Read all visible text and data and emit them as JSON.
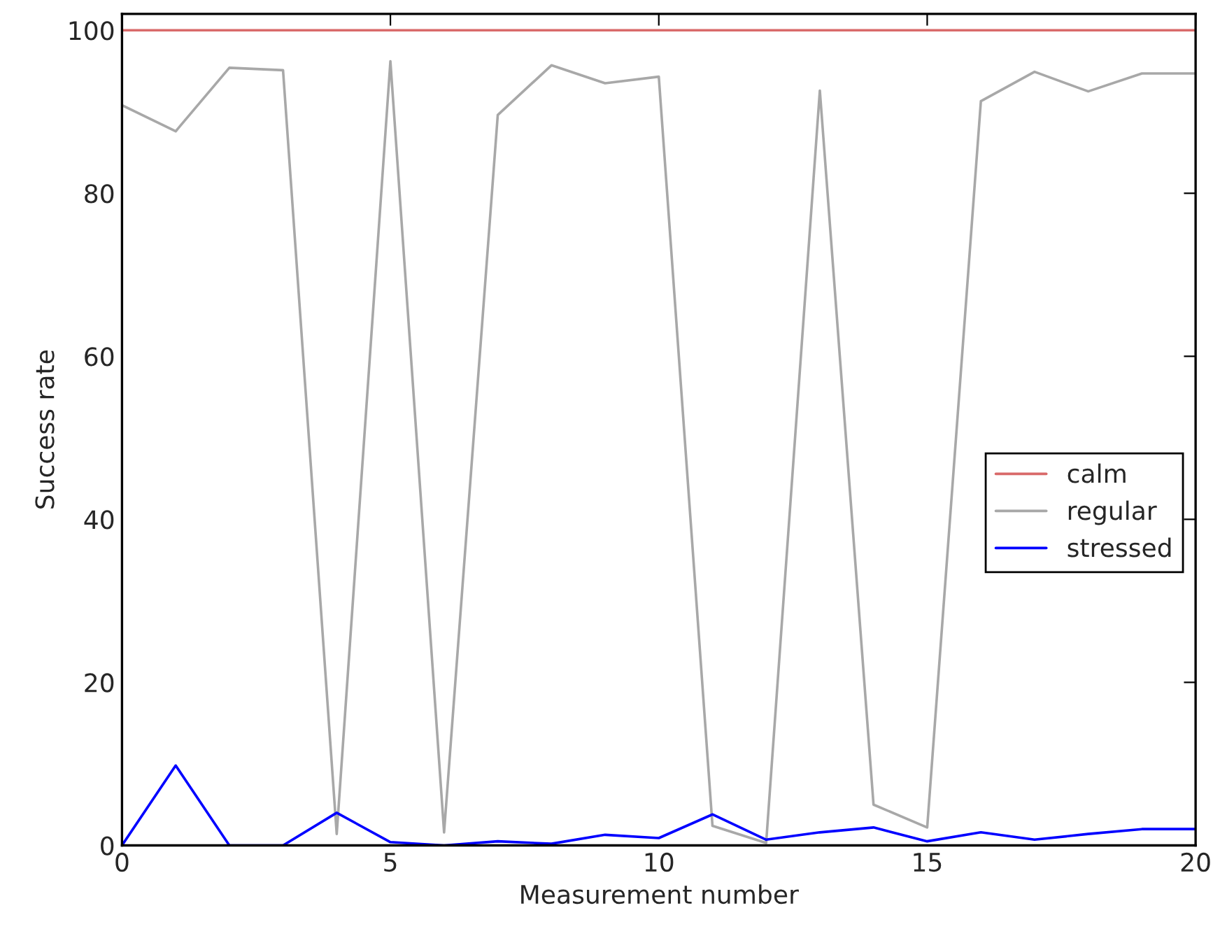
{
  "chart_data": {
    "type": "line",
    "xlabel": "Measurement number",
    "ylabel": "Success rate",
    "x": [
      0,
      1,
      2,
      3,
      4,
      5,
      6,
      7,
      8,
      9,
      10,
      11,
      12,
      13,
      14,
      15,
      16,
      17,
      18,
      19,
      20
    ],
    "series": [
      {
        "name": "calm",
        "color": "#d96a6a",
        "values": [
          100,
          100,
          100,
          100,
          100,
          100,
          100,
          100,
          100,
          100,
          100,
          100,
          100,
          100,
          100,
          100,
          100,
          100,
          100,
          100,
          100
        ]
      },
      {
        "name": "regular",
        "color": "#a8a8a8",
        "values": [
          90.8,
          87.6,
          95.4,
          95.1,
          1.4,
          96.2,
          1.6,
          89.6,
          95.7,
          93.5,
          94.3,
          2.4,
          0.3,
          92.6,
          5.0,
          2.2,
          91.3,
          94.9,
          92.5,
          94.7,
          94.7
        ]
      },
      {
        "name": "stressed",
        "color": "#0000ff",
        "values": [
          0,
          9.8,
          0,
          0,
          4.0,
          0.4,
          0,
          0.5,
          0.2,
          1.3,
          0.9,
          3.8,
          0.7,
          1.6,
          2.2,
          0.5,
          1.6,
          0.7,
          1.4,
          2.0,
          2.0
        ]
      }
    ],
    "xlim": [
      0,
      20
    ],
    "xticks": [
      0,
      5,
      10,
      15,
      20
    ],
    "ylim": [
      0,
      102
    ],
    "yticks": [
      0,
      20,
      40,
      60,
      80,
      100
    ],
    "grid": false,
    "legend": "center right",
    "marker": "none",
    "line_style": "solid"
  }
}
